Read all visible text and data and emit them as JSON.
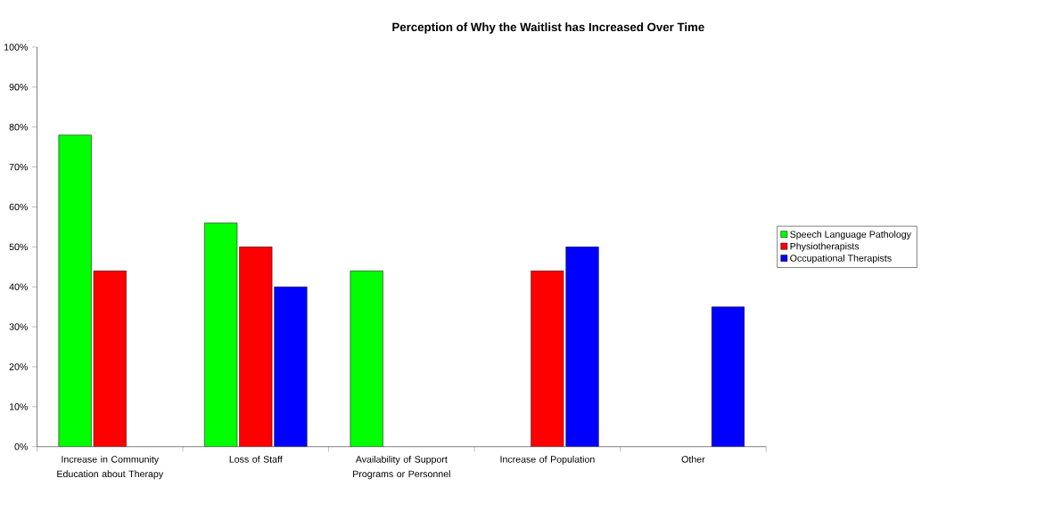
{
  "chart_data": {
    "type": "bar",
    "title": "Perception of Why the Waitlist has Increased Over Time",
    "categories": [
      "Increase in Community Education about Therapy",
      "Loss of Staff",
      "Availability of Support Programs or Personnel",
      "Increase of Population",
      "Other"
    ],
    "series": [
      {
        "name": "Speech Language Pathology",
        "color": "#00ff00",
        "values": [
          78,
          56,
          44,
          null,
          null
        ]
      },
      {
        "name": "Physiotherapists",
        "color": "#ff0000",
        "values": [
          44,
          50,
          null,
          44,
          null
        ]
      },
      {
        "name": "Occupational Therapists",
        "color": "#0000ff",
        "values": [
          null,
          40,
          null,
          50,
          35
        ]
      }
    ],
    "ylim": [
      0,
      100
    ],
    "yticks": [
      {
        "value": 0,
        "label": "0%"
      },
      {
        "value": 10,
        "label": "10%"
      },
      {
        "value": 20,
        "label": "20%"
      },
      {
        "value": 30,
        "label": "30%"
      },
      {
        "value": 40,
        "label": "40%"
      },
      {
        "value": 50,
        "label": "50%"
      },
      {
        "value": 60,
        "label": "60%"
      },
      {
        "value": 70,
        "label": "70%"
      },
      {
        "value": 80,
        "label": "80%"
      },
      {
        "value": 90,
        "label": "90%"
      },
      {
        "value": 100,
        "label": "100%"
      }
    ],
    "grid": false,
    "legend": "right"
  }
}
